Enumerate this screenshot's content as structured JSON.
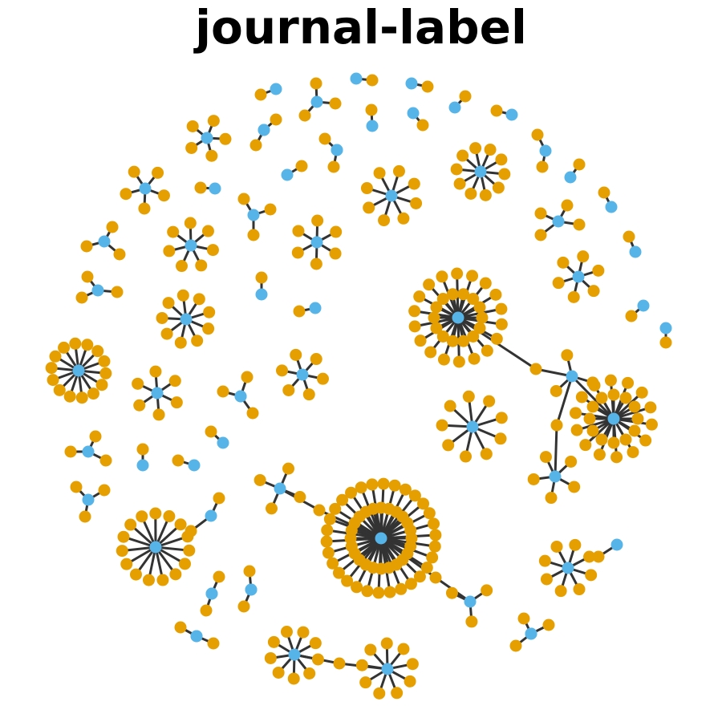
{
  "title": "journal-label",
  "colors": {
    "hub": "#56B4E9",
    "leaf": "#E69F00",
    "edge": "#333333",
    "background": "#FFFFFF"
  }
}
